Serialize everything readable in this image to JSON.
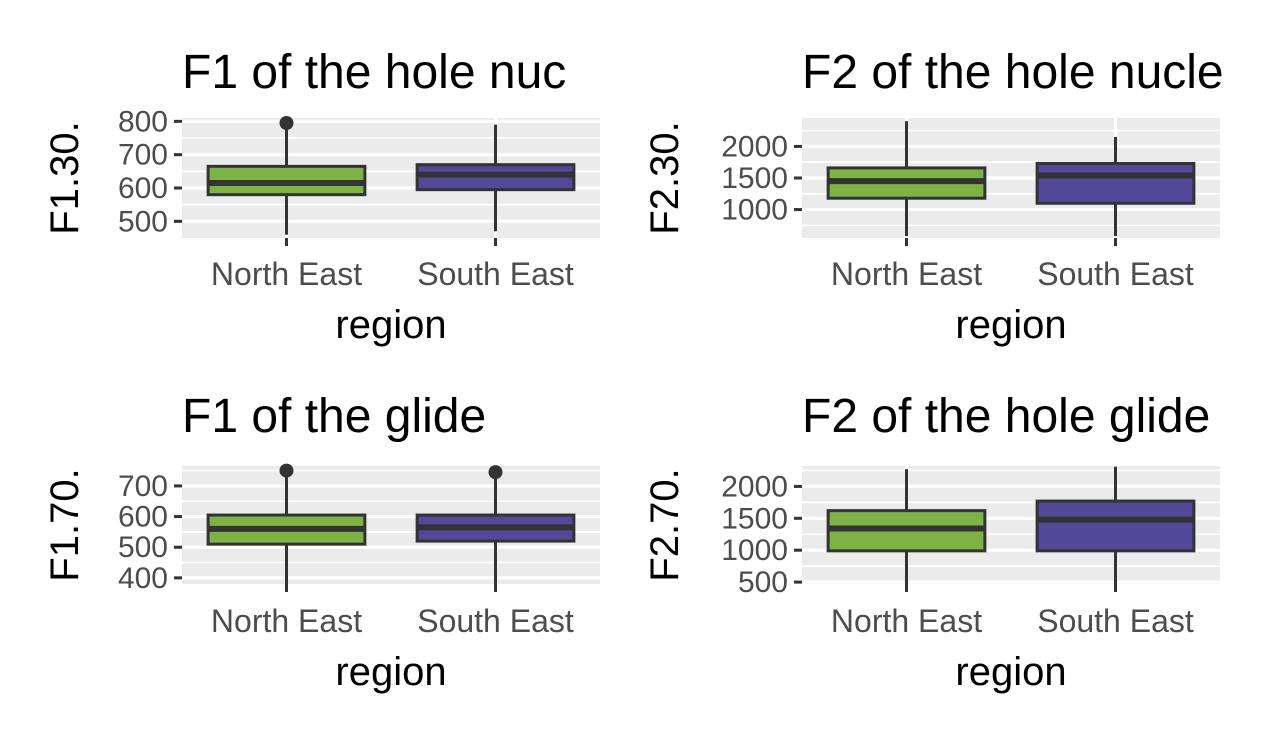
{
  "chart_data": [
    {
      "type": "boxplot",
      "title": "F1 of the hole nuc",
      "xlabel": "region",
      "ylabel": "F1.30.",
      "categories": [
        "North East",
        "South East"
      ],
      "yticks": [
        500,
        600,
        700,
        800
      ],
      "ylim": [
        450,
        810
      ],
      "grid": true,
      "boxes": [
        {
          "category": "North East",
          "color": "#7cb342",
          "whisker_low": 460,
          "q1": 580,
          "median": 615,
          "q3": 665,
          "whisker_high": 780,
          "outliers": [
            795
          ]
        },
        {
          "category": "South East",
          "color": "#53489a",
          "whisker_low": 470,
          "q1": 595,
          "median": 640,
          "q3": 670,
          "whisker_high": 790,
          "outliers": []
        }
      ]
    },
    {
      "type": "boxplot",
      "title": "F2 of the hole nucle",
      "xlabel": "region",
      "ylabel": "F2.30.",
      "categories": [
        "North East",
        "South East"
      ],
      "yticks": [
        1000,
        1500,
        2000
      ],
      "ylim": [
        550,
        2450
      ],
      "grid": true,
      "boxes": [
        {
          "category": "North East",
          "color": "#7cb342",
          "whisker_low": 580,
          "q1": 1180,
          "median": 1450,
          "q3": 1660,
          "whisker_high": 2400,
          "outliers": []
        },
        {
          "category": "South East",
          "color": "#53489a",
          "whisker_low": 580,
          "q1": 1100,
          "median": 1540,
          "q3": 1730,
          "whisker_high": 2150,
          "outliers": []
        }
      ]
    },
    {
      "type": "boxplot",
      "title": "F1 of the glide",
      "xlabel": "region",
      "ylabel": "F1.70.",
      "categories": [
        "North East",
        "South East"
      ],
      "yticks": [
        400,
        500,
        600,
        700
      ],
      "ylim": [
        380,
        765
      ],
      "grid": true,
      "boxes": [
        {
          "category": "North East",
          "color": "#7cb342",
          "whisker_low": 380,
          "q1": 510,
          "median": 560,
          "q3": 605,
          "whisker_high": 740,
          "outliers": [
            750
          ]
        },
        {
          "category": "South East",
          "color": "#53489a",
          "whisker_low": 380,
          "q1": 520,
          "median": 565,
          "q3": 605,
          "whisker_high": 735,
          "outliers": [
            745
          ]
        }
      ]
    },
    {
      "type": "boxplot",
      "title": "F2 of the hole glide",
      "xlabel": "region",
      "ylabel": "F2.70.",
      "categories": [
        "North East",
        "South East"
      ],
      "yticks": [
        500,
        1000,
        1500,
        2000
      ],
      "ylim": [
        470,
        2320
      ],
      "grid": true,
      "boxes": [
        {
          "category": "North East",
          "color": "#7cb342",
          "whisker_low": 470,
          "q1": 990,
          "median": 1340,
          "q3": 1620,
          "whisker_high": 2270,
          "outliers": []
        },
        {
          "category": "South East",
          "color": "#53489a",
          "whisker_low": 470,
          "q1": 990,
          "median": 1480,
          "q3": 1770,
          "whisker_high": 2310,
          "outliers": []
        }
      ]
    }
  ]
}
